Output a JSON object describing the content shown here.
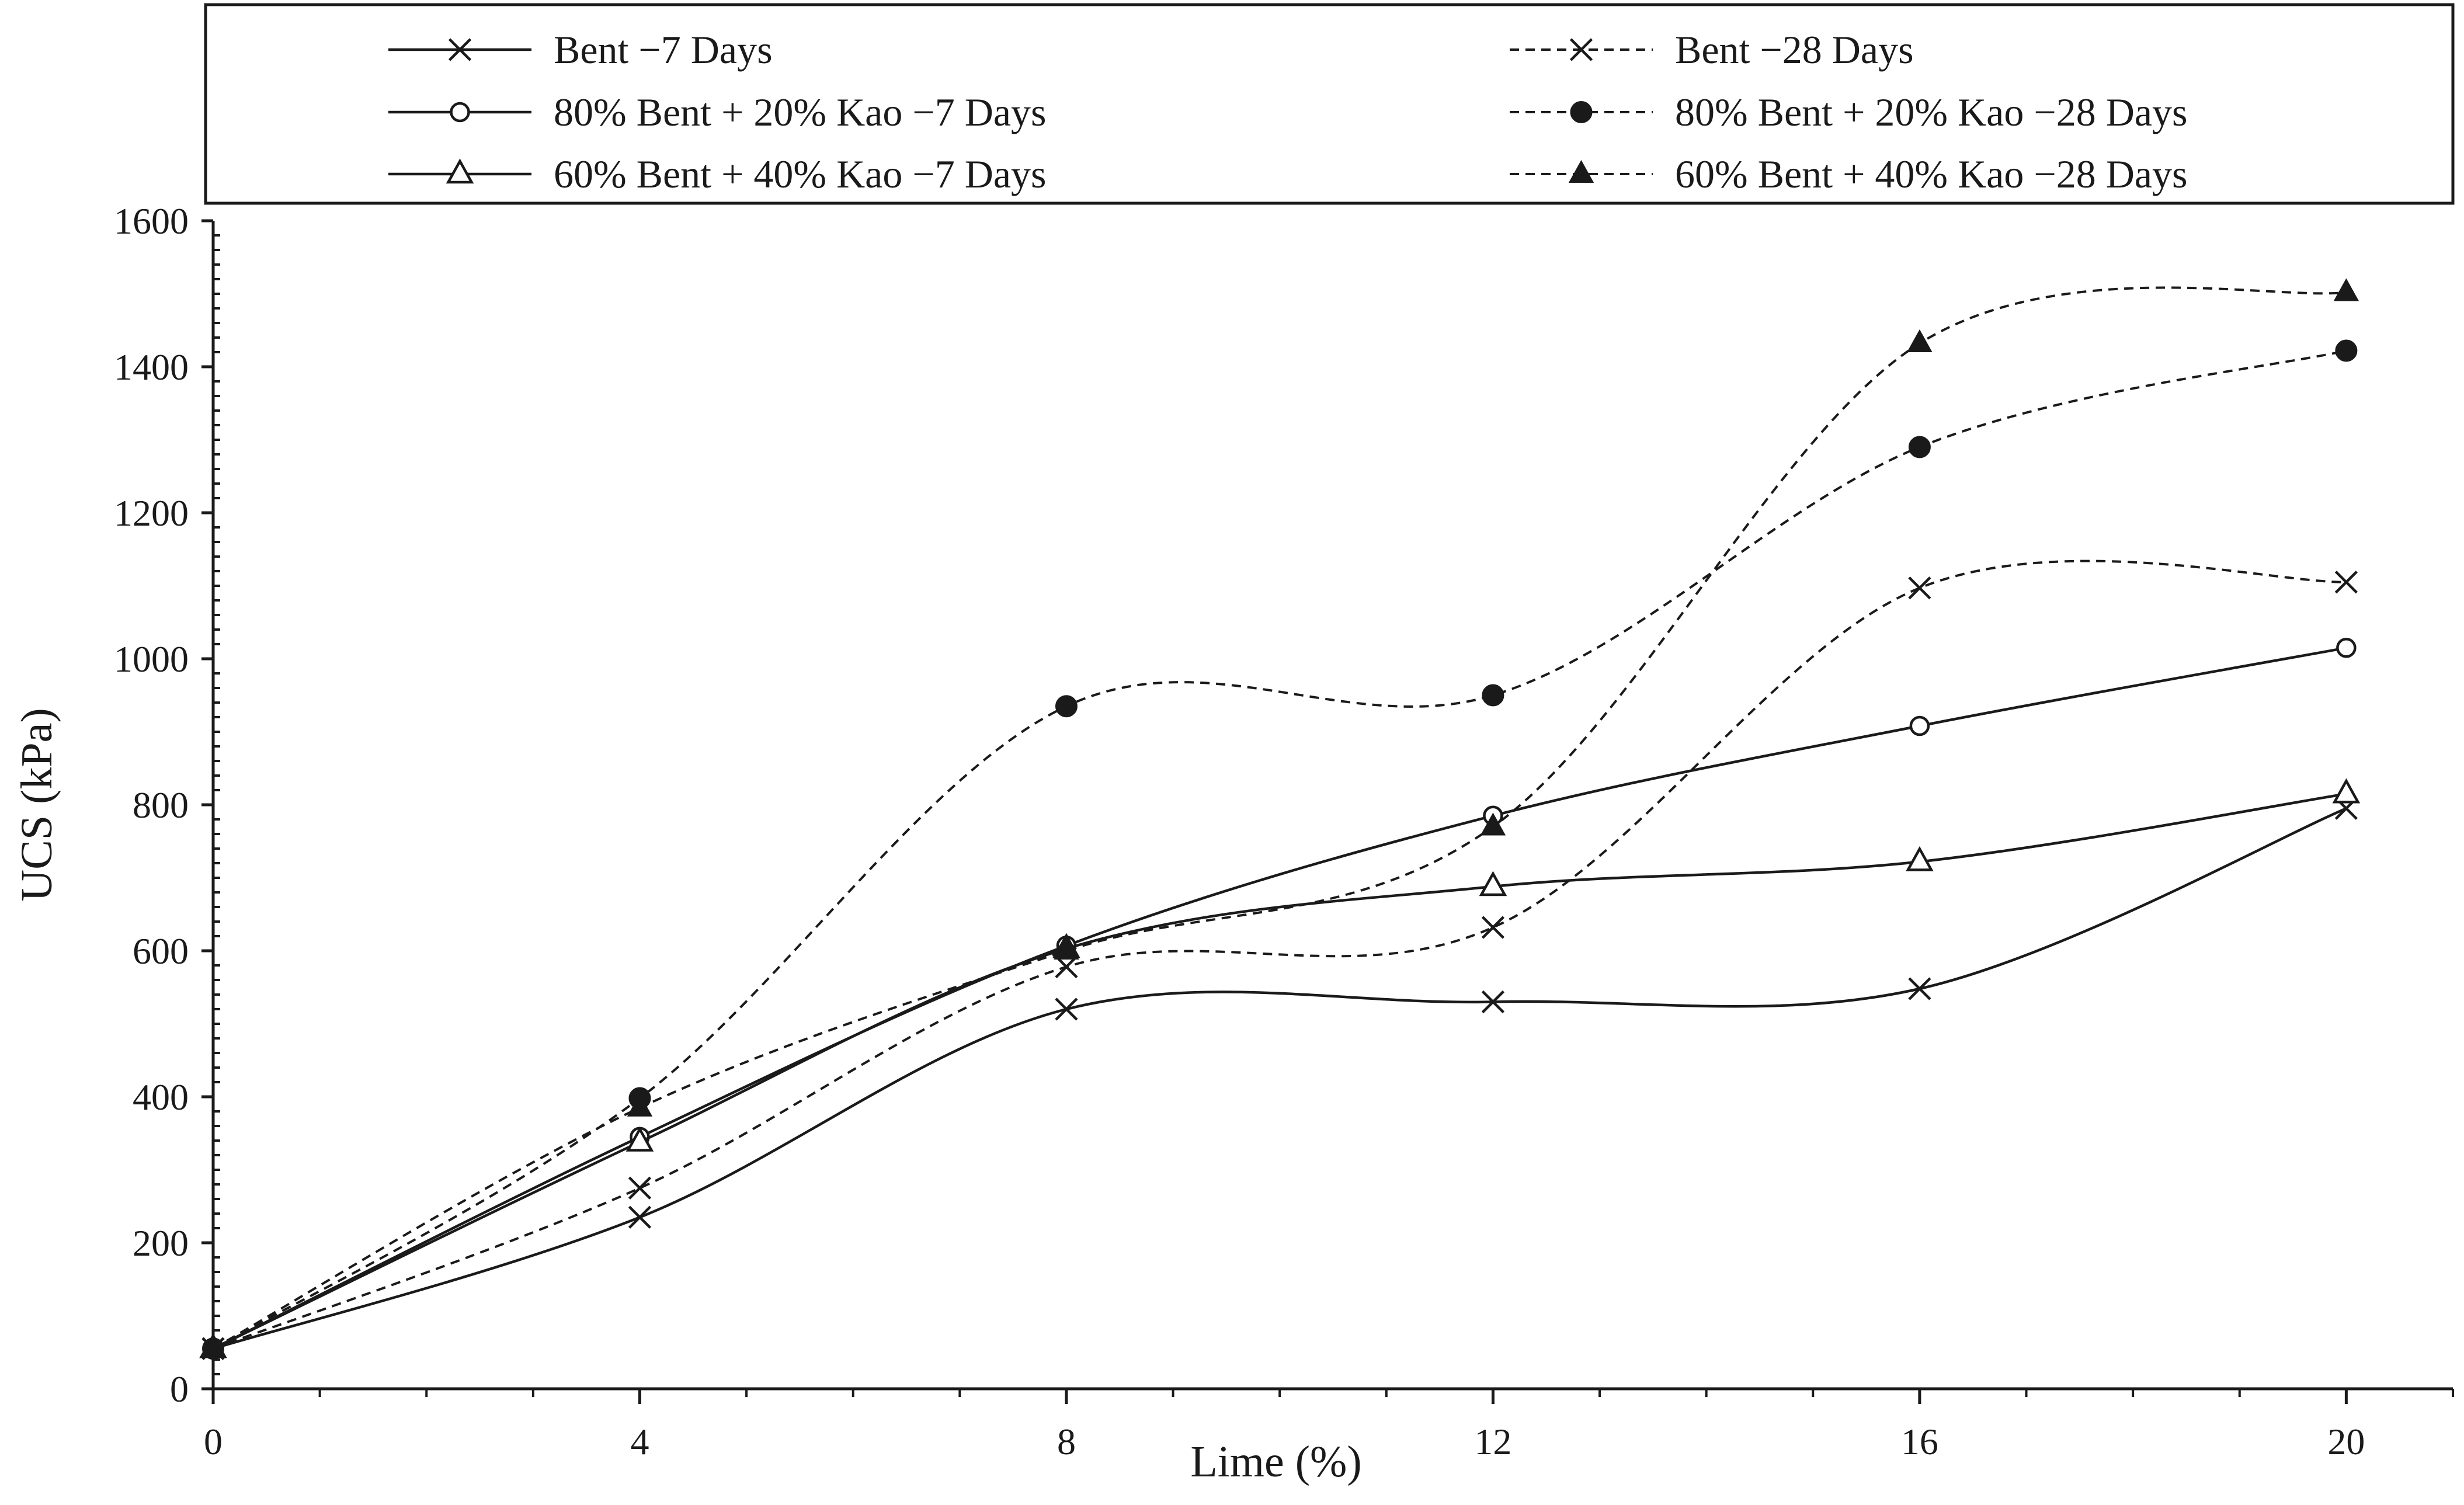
{
  "chart_data": {
    "type": "line",
    "title": "",
    "xlabel": "Lime (%)",
    "ylabel": "UCS (kPa)",
    "x": [
      0,
      4,
      8,
      12,
      16,
      20
    ],
    "xlim": [
      0,
      21
    ],
    "ylim": [
      0,
      1600
    ],
    "xticks": [
      0,
      4,
      8,
      12,
      16,
      20
    ],
    "yticks": [
      0,
      200,
      400,
      600,
      800,
      1000,
      1200,
      1400,
      1600
    ],
    "x_tick_labels": [
      "0",
      "4",
      "8",
      "12",
      "16",
      "20"
    ],
    "y_tick_labels": [
      "0",
      "200",
      "400",
      "600",
      "800",
      "1000",
      "1200",
      "1400",
      "1600"
    ],
    "grid": false,
    "smooth": true,
    "legend_position": "top",
    "series": [
      {
        "name": "Bent −7 Days",
        "values": [
          55,
          235,
          520,
          530,
          548,
          795
        ],
        "line_style": "solid",
        "marker": "x"
      },
      {
        "name": "80% Bent + 20% Kao −7 Days",
        "values": [
          55,
          345,
          607,
          785,
          908,
          1015
        ],
        "line_style": "solid",
        "marker": "circle-open"
      },
      {
        "name": "60% Bent + 40% Kao −7 Days",
        "values": [
          55,
          338,
          603,
          688,
          722,
          815
        ],
        "line_style": "solid",
        "marker": "triangle-open"
      },
      {
        "name": "Bent −28 Days",
        "values": [
          55,
          275,
          578,
          632,
          1097,
          1105
        ],
        "line_style": "dashed",
        "marker": "x"
      },
      {
        "name": "80% Bent + 20% Kao −28 Days",
        "values": [
          55,
          398,
          935,
          950,
          1290,
          1422
        ],
        "line_style": "dashed",
        "marker": "circle-filled"
      },
      {
        "name": "60% Bent + 40% Kao −28 Days",
        "values": [
          55,
          385,
          600,
          770,
          1432,
          1502
        ],
        "line_style": "dashed",
        "marker": "triangle-filled"
      }
    ],
    "colors": {
      "ink": "#1a1a1a",
      "background": "#ffffff"
    }
  }
}
